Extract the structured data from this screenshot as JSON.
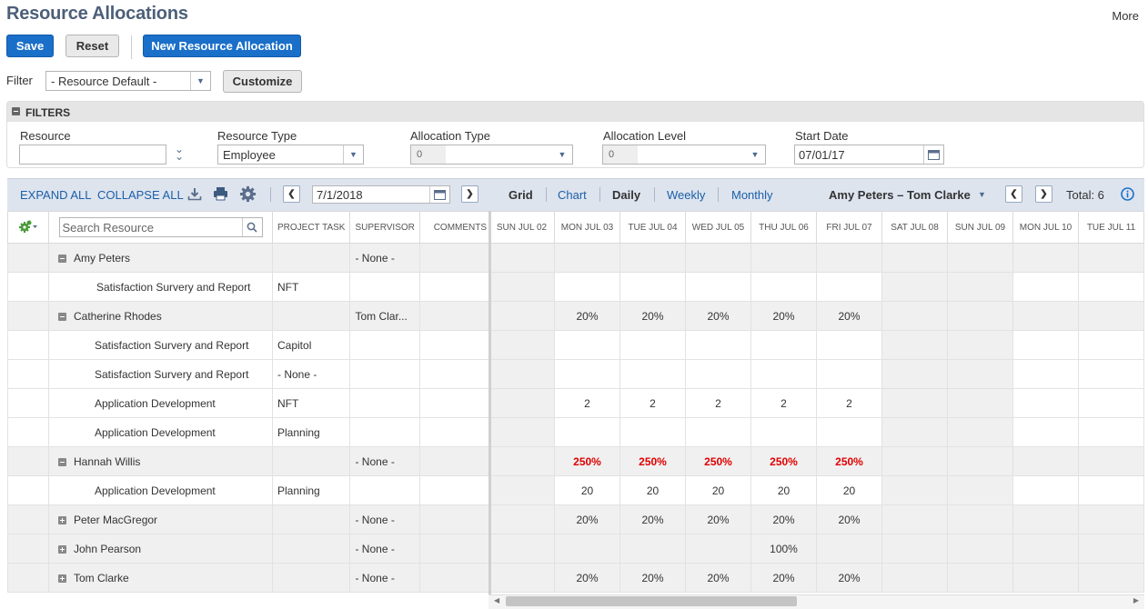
{
  "header": {
    "title": "Resource Allocations",
    "more": "More"
  },
  "actions": {
    "save": "Save",
    "reset": "Reset",
    "new": "New Resource Allocation"
  },
  "filter_row": {
    "label": "Filter",
    "value": "- Resource Default -",
    "customize": "Customize"
  },
  "filters": {
    "title": "FILTERS",
    "resource": {
      "label": "Resource",
      "value": ""
    },
    "resource_type": {
      "label": "Resource Type",
      "value": "Employee"
    },
    "allocation_type": {
      "label": "Allocation Type",
      "value": "0"
    },
    "allocation_level": {
      "label": "Allocation Level",
      "value": "0"
    },
    "start_date": {
      "label": "Start Date",
      "value": "07/01/17"
    }
  },
  "toolbar": {
    "expand_all": "EXPAND ALL",
    "collapse_all": "COLLAPSE ALL",
    "date": "7/1/2018",
    "views": [
      "Grid",
      "Chart"
    ],
    "periods": [
      "Daily",
      "Weekly",
      "Monthly"
    ],
    "resource_range": "Amy Peters – Tom Clarke",
    "total": "Total: 6"
  },
  "grid": {
    "search_placeholder": "Search Resource",
    "left_headers": [
      "PROJECT TASK",
      "SUPERVISOR",
      "COMMENTS"
    ],
    "day_headers": [
      "SUN JUL 02",
      "MON JUL 03",
      "TUE JUL 04",
      "WED JUL 05",
      "THU JUL 06",
      "FRI JUL 07",
      "SAT JUL 08",
      "SUN JUL 09",
      "MON JUL 10",
      "TUE JUL 11"
    ],
    "rows": [
      {
        "name": "Amy Peters",
        "level": 0,
        "toggle": "minus",
        "task": "",
        "supervisor": "- None -",
        "comments": "",
        "days": [
          "",
          "",
          "",
          "",
          "",
          "",
          "",
          "",
          "",
          ""
        ],
        "over": false
      },
      {
        "name": "Satisfaction Survery and Report",
        "level": 1,
        "toggle": "",
        "task": "NFT",
        "supervisor": "",
        "comments": "",
        "days": [
          "",
          "",
          "",
          "",
          "",
          "",
          "",
          "",
          "",
          ""
        ],
        "over": false
      },
      {
        "name": "Catherine Rhodes",
        "level": 0,
        "toggle": "minus",
        "task": "",
        "supervisor": "Tom Clar...",
        "comments": "",
        "days": [
          "",
          "20%",
          "20%",
          "20%",
          "20%",
          "20%",
          "",
          "",
          "",
          ""
        ],
        "over": false
      },
      {
        "name": "Satisfaction Survery and Report",
        "level": 1,
        "toggle": "",
        "task": "Capitol",
        "supervisor": "",
        "comments": "",
        "days": [
          "",
          "",
          "",
          "",
          "",
          "",
          "",
          "",
          "",
          ""
        ],
        "over": false
      },
      {
        "name": "Satisfaction Survery and Report",
        "level": 1,
        "toggle": "",
        "task": "- None -",
        "supervisor": "",
        "comments": "",
        "days": [
          "",
          "",
          "",
          "",
          "",
          "",
          "",
          "",
          "",
          ""
        ],
        "over": false
      },
      {
        "name": "Application Development",
        "level": 1,
        "toggle": "",
        "task": "NFT",
        "supervisor": "",
        "comments": "",
        "days": [
          "",
          "2",
          "2",
          "2",
          "2",
          "2",
          "",
          "",
          "",
          ""
        ],
        "over": false
      },
      {
        "name": "Application Development",
        "level": 1,
        "toggle": "",
        "task": "Planning",
        "supervisor": "",
        "comments": "",
        "days": [
          "",
          "",
          "",
          "",
          "",
          "",
          "",
          "",
          "",
          ""
        ],
        "over": false
      },
      {
        "name": "Hannah Willis",
        "level": 0,
        "toggle": "minus",
        "task": "",
        "supervisor": "- None -",
        "comments": "",
        "days": [
          "",
          "250%",
          "250%",
          "250%",
          "250%",
          "250%",
          "",
          "",
          "",
          ""
        ],
        "over": true
      },
      {
        "name": "Application Development",
        "level": 1,
        "toggle": "",
        "task": "Planning",
        "supervisor": "",
        "comments": "",
        "days": [
          "",
          "20",
          "20",
          "20",
          "20",
          "20",
          "",
          "",
          "",
          ""
        ],
        "over": false
      },
      {
        "name": "Peter MacGregor",
        "level": 0,
        "toggle": "plus",
        "task": "",
        "supervisor": "- None -",
        "comments": "",
        "days": [
          "",
          "20%",
          "20%",
          "20%",
          "20%",
          "20%",
          "",
          "",
          "",
          ""
        ],
        "over": false
      },
      {
        "name": "John Pearson",
        "level": 0,
        "toggle": "plus",
        "task": "",
        "supervisor": "- None -",
        "comments": "",
        "days": [
          "",
          "",
          "",
          "",
          "100%",
          "",
          "",
          "",
          "",
          ""
        ],
        "over": false
      },
      {
        "name": "Tom Clarke",
        "level": 0,
        "toggle": "plus",
        "task": "",
        "supervisor": "- None -",
        "comments": "",
        "days": [
          "",
          "20%",
          "20%",
          "20%",
          "20%",
          "20%",
          "",
          "",
          "",
          ""
        ],
        "over": false
      }
    ]
  }
}
